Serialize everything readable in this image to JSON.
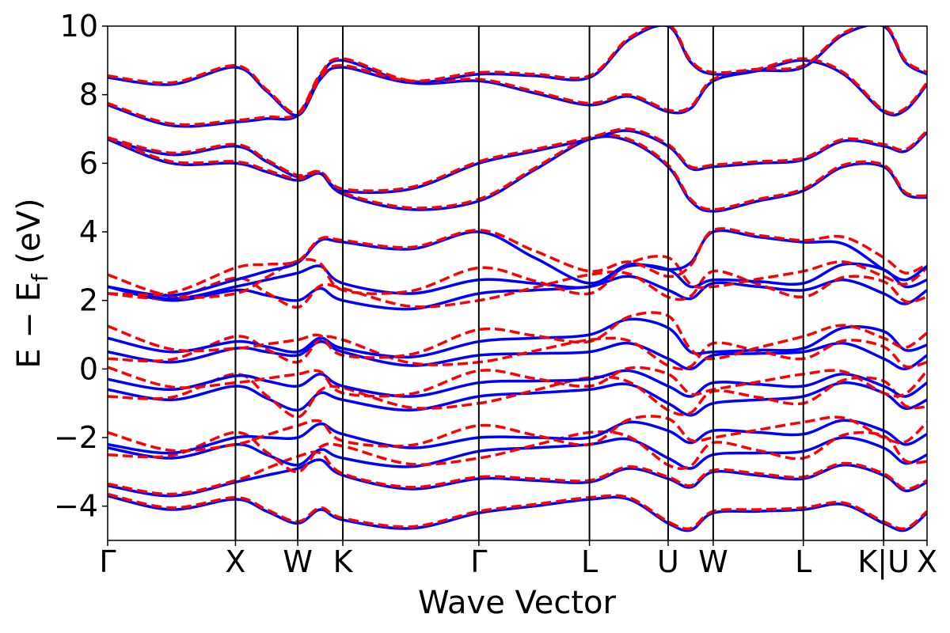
{
  "chart_data": {
    "type": "line",
    "title": "",
    "xlabel": "Wave Vector",
    "ylabel_main": "E − E",
    "ylabel_sub": "f",
    "ylabel_unit": " (eV)",
    "ylim": [
      -5,
      10
    ],
    "yticks": [
      -4,
      -2,
      0,
      2,
      4,
      6,
      8,
      10
    ],
    "ytick_labels": [
      "−4",
      "−2",
      "0",
      "2",
      "4",
      "6",
      "8",
      "10"
    ],
    "grid": false,
    "legend": "none",
    "high_symmetry_points": [
      {
        "label": "Γ",
        "k": 0.0
      },
      {
        "label": "X",
        "k": 0.156
      },
      {
        "label": "W",
        "k": 0.232
      },
      {
        "label": "K",
        "k": 0.287
      },
      {
        "label": "Γ",
        "k": 0.453
      },
      {
        "label": "L",
        "k": 0.588
      },
      {
        "label": "U",
        "k": 0.684
      },
      {
        "label": "W",
        "k": 0.739
      },
      {
        "label": "L",
        "k": 0.849
      },
      {
        "label": "K|U",
        "k": 0.947
      },
      {
        "label": "X",
        "k": 1.0
      }
    ],
    "series_styles": [
      {
        "color": "#0000ff",
        "dash": "solid"
      },
      {
        "color": "#ff0000",
        "dash": "dashed"
      }
    ],
    "bands": [
      {
        "values": [
          -3.7,
          -3.8,
          -4.5,
          -4.4,
          -4.2,
          -3.8,
          -4.5,
          -4.2,
          -4.1,
          -4.5,
          -4.2,
          -4.5
        ]
      },
      {
        "values": [
          -3.4,
          -3.3,
          -2.9,
          -3.1,
          -3.2,
          -3.3,
          -3.2,
          -3.0,
          -3.2,
          -3.1,
          -3.3,
          -2.9
        ]
      },
      {
        "values": [
          -2.3,
          -2.2,
          -2.8,
          -2.6,
          -2.4,
          -2.2,
          -2.6,
          -2.5,
          -2.4,
          -2.3,
          -2.5,
          -2.4
        ]
      },
      {
        "values": [
          -2.2,
          -2.0,
          -2.0,
          -1.9,
          -2.0,
          -2.0,
          -1.8,
          -1.8,
          -1.9,
          -1.8,
          -1.9,
          -2.0
        ]
      },
      {
        "values": [
          -0.6,
          -0.5,
          -1.2,
          -0.9,
          -0.8,
          -0.6,
          -1.0,
          -1.0,
          -0.8,
          -0.7,
          -0.9,
          -1.2
        ]
      },
      {
        "values": [
          -0.3,
          -0.2,
          -0.5,
          -0.5,
          -0.4,
          -0.3,
          -0.5,
          -0.4,
          -0.5,
          -0.5,
          -0.4,
          -0.5
        ]
      },
      {
        "values": [
          0.5,
          0.6,
          0.4,
          0.5,
          0.4,
          0.5,
          0.3,
          0.4,
          0.5,
          0.3,
          0.4,
          0.4
        ]
      },
      {
        "values": [
          0.9,
          0.8,
          0.5,
          0.6,
          0.8,
          1.0,
          1.2,
          0.5,
          0.6,
          1.1,
          0.7,
          0.6
        ]
      },
      {
        "values": [
          2.4,
          2.3,
          2.0,
          2.0,
          2.2,
          2.4,
          2.3,
          2.5,
          2.3,
          2.2,
          2.3,
          2.0
        ]
      },
      {
        "values": [
          2.4,
          2.4,
          2.8,
          2.5,
          2.6,
          2.4,
          2.9,
          2.6,
          2.5,
          2.9,
          2.6,
          2.8
        ]
      },
      {
        "values": [
          2.4,
          2.6,
          3.1,
          3.7,
          4.0,
          2.5,
          2.9,
          4.0,
          3.7,
          2.9,
          3.0,
          3.1
        ]
      },
      {
        "values": [
          6.7,
          6.5,
          5.6,
          5.1,
          4.9,
          6.7,
          5.9,
          4.6,
          5.2,
          5.9,
          5.0,
          5.6
        ]
      },
      {
        "values": [
          6.7,
          6.0,
          5.5,
          5.2,
          6.0,
          6.7,
          6.5,
          5.9,
          6.1,
          6.5,
          6.9,
          5.5
        ]
      },
      {
        "values": [
          7.7,
          7.2,
          7.4,
          9.0,
          8.4,
          7.7,
          7.5,
          8.4,
          9.0,
          7.5,
          8.3,
          7.4
        ]
      },
      {
        "values": [
          8.5,
          8.8,
          7.4,
          8.8,
          8.6,
          8.5,
          10.0,
          8.6,
          8.8,
          10.0,
          8.6,
          7.4
        ]
      }
    ]
  }
}
